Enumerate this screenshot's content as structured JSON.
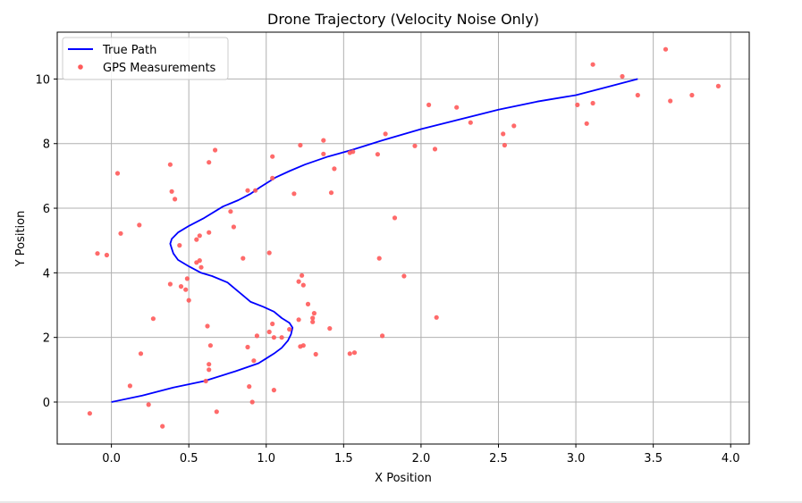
{
  "chart_data": {
    "type": "line",
    "title": "Drone Trajectory (Velocity Noise Only)",
    "xlabel": "X Position",
    "ylabel": "Y Position",
    "xlim": [
      -0.35,
      4.12
    ],
    "ylim": [
      -1.3,
      11.45
    ],
    "xticks": [
      0.0,
      0.5,
      1.0,
      1.5,
      2.0,
      2.5,
      3.0,
      3.5,
      4.0
    ],
    "xtick_labels": [
      "0.0",
      "0.5",
      "1.0",
      "1.5",
      "2.0",
      "2.5",
      "3.0",
      "3.5",
      "4.0"
    ],
    "yticks": [
      0,
      2,
      4,
      6,
      8,
      10
    ],
    "ytick_labels": [
      "0",
      "2",
      "4",
      "6",
      "8",
      "10"
    ],
    "grid": true,
    "legend_position": "top-left",
    "series": [
      {
        "name": "True Path",
        "type": "line",
        "color": "#0000ff",
        "points": [
          [
            0.0,
            0.0
          ],
          [
            0.2,
            0.2
          ],
          [
            0.4,
            0.45
          ],
          [
            0.6,
            0.65
          ],
          [
            0.8,
            0.95
          ],
          [
            0.95,
            1.2
          ],
          [
            1.0,
            1.35
          ],
          [
            1.05,
            1.5
          ],
          [
            1.1,
            1.68
          ],
          [
            1.14,
            1.9
          ],
          [
            1.16,
            2.1
          ],
          [
            1.17,
            2.3
          ],
          [
            1.15,
            2.45
          ],
          [
            1.1,
            2.6
          ],
          [
            1.05,
            2.8
          ],
          [
            0.98,
            2.95
          ],
          [
            0.9,
            3.1
          ],
          [
            0.85,
            3.3
          ],
          [
            0.8,
            3.5
          ],
          [
            0.75,
            3.7
          ],
          [
            0.65,
            3.9
          ],
          [
            0.58,
            4.0
          ],
          [
            0.5,
            4.2
          ],
          [
            0.43,
            4.4
          ],
          [
            0.4,
            4.6
          ],
          [
            0.39,
            4.75
          ],
          [
            0.38,
            4.9
          ],
          [
            0.39,
            5.05
          ],
          [
            0.43,
            5.25
          ],
          [
            0.5,
            5.45
          ],
          [
            0.6,
            5.7
          ],
          [
            0.72,
            6.05
          ],
          [
            0.82,
            6.25
          ],
          [
            0.9,
            6.45
          ],
          [
            0.96,
            6.65
          ],
          [
            1.06,
            6.95
          ],
          [
            1.15,
            7.15
          ],
          [
            1.25,
            7.35
          ],
          [
            1.4,
            7.6
          ],
          [
            1.55,
            7.8
          ],
          [
            1.75,
            8.1
          ],
          [
            2.0,
            8.45
          ],
          [
            2.25,
            8.75
          ],
          [
            2.5,
            9.05
          ],
          [
            2.75,
            9.3
          ],
          [
            3.0,
            9.5
          ],
          [
            3.2,
            9.75
          ],
          [
            3.4,
            10.0
          ]
        ]
      },
      {
        "name": "GPS Measurements",
        "type": "scatter",
        "color": "#ff5a5a",
        "points": [
          [
            3.58,
            10.92
          ],
          [
            3.11,
            10.45
          ],
          [
            3.3,
            10.08
          ],
          [
            3.92,
            9.78
          ],
          [
            3.75,
            9.5
          ],
          [
            3.4,
            9.5
          ],
          [
            3.61,
            9.32
          ],
          [
            3.11,
            9.25
          ],
          [
            3.01,
            9.2
          ],
          [
            2.05,
            9.2
          ],
          [
            2.23,
            9.12
          ],
          [
            3.07,
            8.62
          ],
          [
            2.32,
            8.65
          ],
          [
            2.6,
            8.55
          ],
          [
            2.53,
            8.3
          ],
          [
            1.77,
            8.3
          ],
          [
            1.37,
            8.1
          ],
          [
            1.22,
            7.95
          ],
          [
            1.96,
            7.93
          ],
          [
            2.54,
            7.95
          ],
          [
            2.09,
            7.83
          ],
          [
            0.67,
            7.8
          ],
          [
            1.56,
            7.75
          ],
          [
            1.54,
            7.72
          ],
          [
            1.72,
            7.67
          ],
          [
            1.37,
            7.68
          ],
          [
            1.04,
            7.6
          ],
          [
            0.63,
            7.42
          ],
          [
            0.38,
            7.35
          ],
          [
            1.44,
            7.22
          ],
          [
            0.04,
            7.08
          ],
          [
            1.04,
            6.93
          ],
          [
            0.88,
            6.55
          ],
          [
            0.39,
            6.52
          ],
          [
            0.93,
            6.55
          ],
          [
            1.18,
            6.45
          ],
          [
            1.42,
            6.48
          ],
          [
            0.41,
            6.28
          ],
          [
            0.77,
            5.9
          ],
          [
            1.83,
            5.7
          ],
          [
            0.18,
            5.48
          ],
          [
            0.79,
            5.42
          ],
          [
            0.06,
            5.22
          ],
          [
            0.63,
            5.25
          ],
          [
            0.57,
            5.15
          ],
          [
            0.55,
            5.03
          ],
          [
            0.44,
            4.85
          ],
          [
            -0.09,
            4.6
          ],
          [
            -0.03,
            4.55
          ],
          [
            1.02,
            4.62
          ],
          [
            1.73,
            4.45
          ],
          [
            0.85,
            4.45
          ],
          [
            0.57,
            4.38
          ],
          [
            0.55,
            4.32
          ],
          [
            0.58,
            4.17
          ],
          [
            1.23,
            3.92
          ],
          [
            1.89,
            3.9
          ],
          [
            0.49,
            3.82
          ],
          [
            1.21,
            3.73
          ],
          [
            0.38,
            3.65
          ],
          [
            1.24,
            3.62
          ],
          [
            0.45,
            3.58
          ],
          [
            0.48,
            3.48
          ],
          [
            0.5,
            3.15
          ],
          [
            1.27,
            3.03
          ],
          [
            1.31,
            2.75
          ],
          [
            1.3,
            2.6
          ],
          [
            2.1,
            2.62
          ],
          [
            0.27,
            2.58
          ],
          [
            1.21,
            2.55
          ],
          [
            1.3,
            2.48
          ],
          [
            1.04,
            2.42
          ],
          [
            0.62,
            2.35
          ],
          [
            1.41,
            2.28
          ],
          [
            1.15,
            2.25
          ],
          [
            1.02,
            2.17
          ],
          [
            0.94,
            2.05
          ],
          [
            1.05,
            2.0
          ],
          [
            1.1,
            2.0
          ],
          [
            1.75,
            2.05
          ],
          [
            0.64,
            1.75
          ],
          [
            1.24,
            1.75
          ],
          [
            1.22,
            1.72
          ],
          [
            0.88,
            1.7
          ],
          [
            1.57,
            1.53
          ],
          [
            1.54,
            1.5
          ],
          [
            1.32,
            1.48
          ],
          [
            0.19,
            1.5
          ],
          [
            0.92,
            1.28
          ],
          [
            0.63,
            1.17
          ],
          [
            0.63,
            1.0
          ],
          [
            0.61,
            0.65
          ],
          [
            0.12,
            0.5
          ],
          [
            0.89,
            0.48
          ],
          [
            1.05,
            0.37
          ],
          [
            0.91,
            0.0
          ],
          [
            0.24,
            -0.08
          ],
          [
            0.68,
            -0.3
          ],
          [
            -0.14,
            -0.35
          ],
          [
            0.33,
            -0.75
          ]
        ]
      }
    ]
  }
}
